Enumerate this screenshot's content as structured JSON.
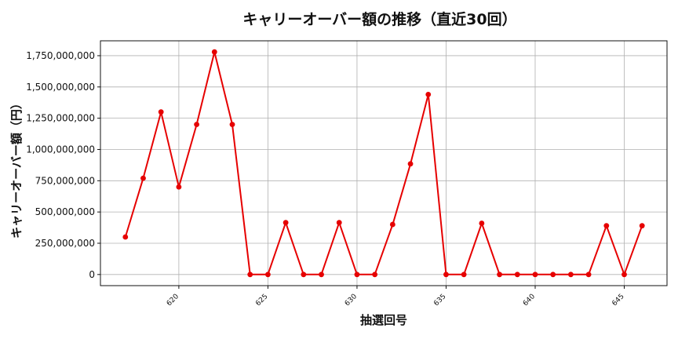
{
  "chart_data": {
    "type": "line",
    "title": "キャリーオーバー額の推移（直近30回）",
    "xlabel": "抽選回号",
    "ylabel": "キャリーオーバー額（円）",
    "x": [
      617,
      618,
      619,
      620,
      621,
      622,
      623,
      624,
      625,
      626,
      627,
      628,
      629,
      630,
      631,
      632,
      633,
      634,
      635,
      636,
      637,
      638,
      639,
      640,
      641,
      642,
      643,
      644,
      645,
      646
    ],
    "series": [
      {
        "name": "",
        "color": "#e60000",
        "marker": "circle",
        "values": [
          300000000,
          770000000,
          1300000000,
          700000000,
          1200000000,
          1780000000,
          1200000000,
          0,
          0,
          415000000,
          0,
          0,
          415000000,
          0,
          0,
          400000000,
          885000000,
          1440000000,
          0,
          0,
          410000000,
          0,
          0,
          0,
          0,
          0,
          0,
          390000000,
          0,
          390000000
        ]
      }
    ],
    "xticks": [
      620,
      625,
      630,
      635,
      640,
      645
    ],
    "xtick_labels": [
      "620",
      "625",
      "630",
      "635",
      "640",
      "645"
    ],
    "yticks": [
      0,
      250000000,
      500000000,
      750000000,
      1000000000,
      1250000000,
      1500000000,
      1750000000
    ],
    "ytick_labels": [
      "0",
      "250,000,000",
      "500,000,000",
      "750,000,000",
      "1,000,000,000",
      "1,250,000,000",
      "1,500,000,000",
      "1,750,000,000"
    ],
    "xlim": [
      615.6,
      647.4
    ],
    "ylim": [
      -89000000,
      1869000000
    ],
    "grid": true,
    "legend": "none"
  }
}
